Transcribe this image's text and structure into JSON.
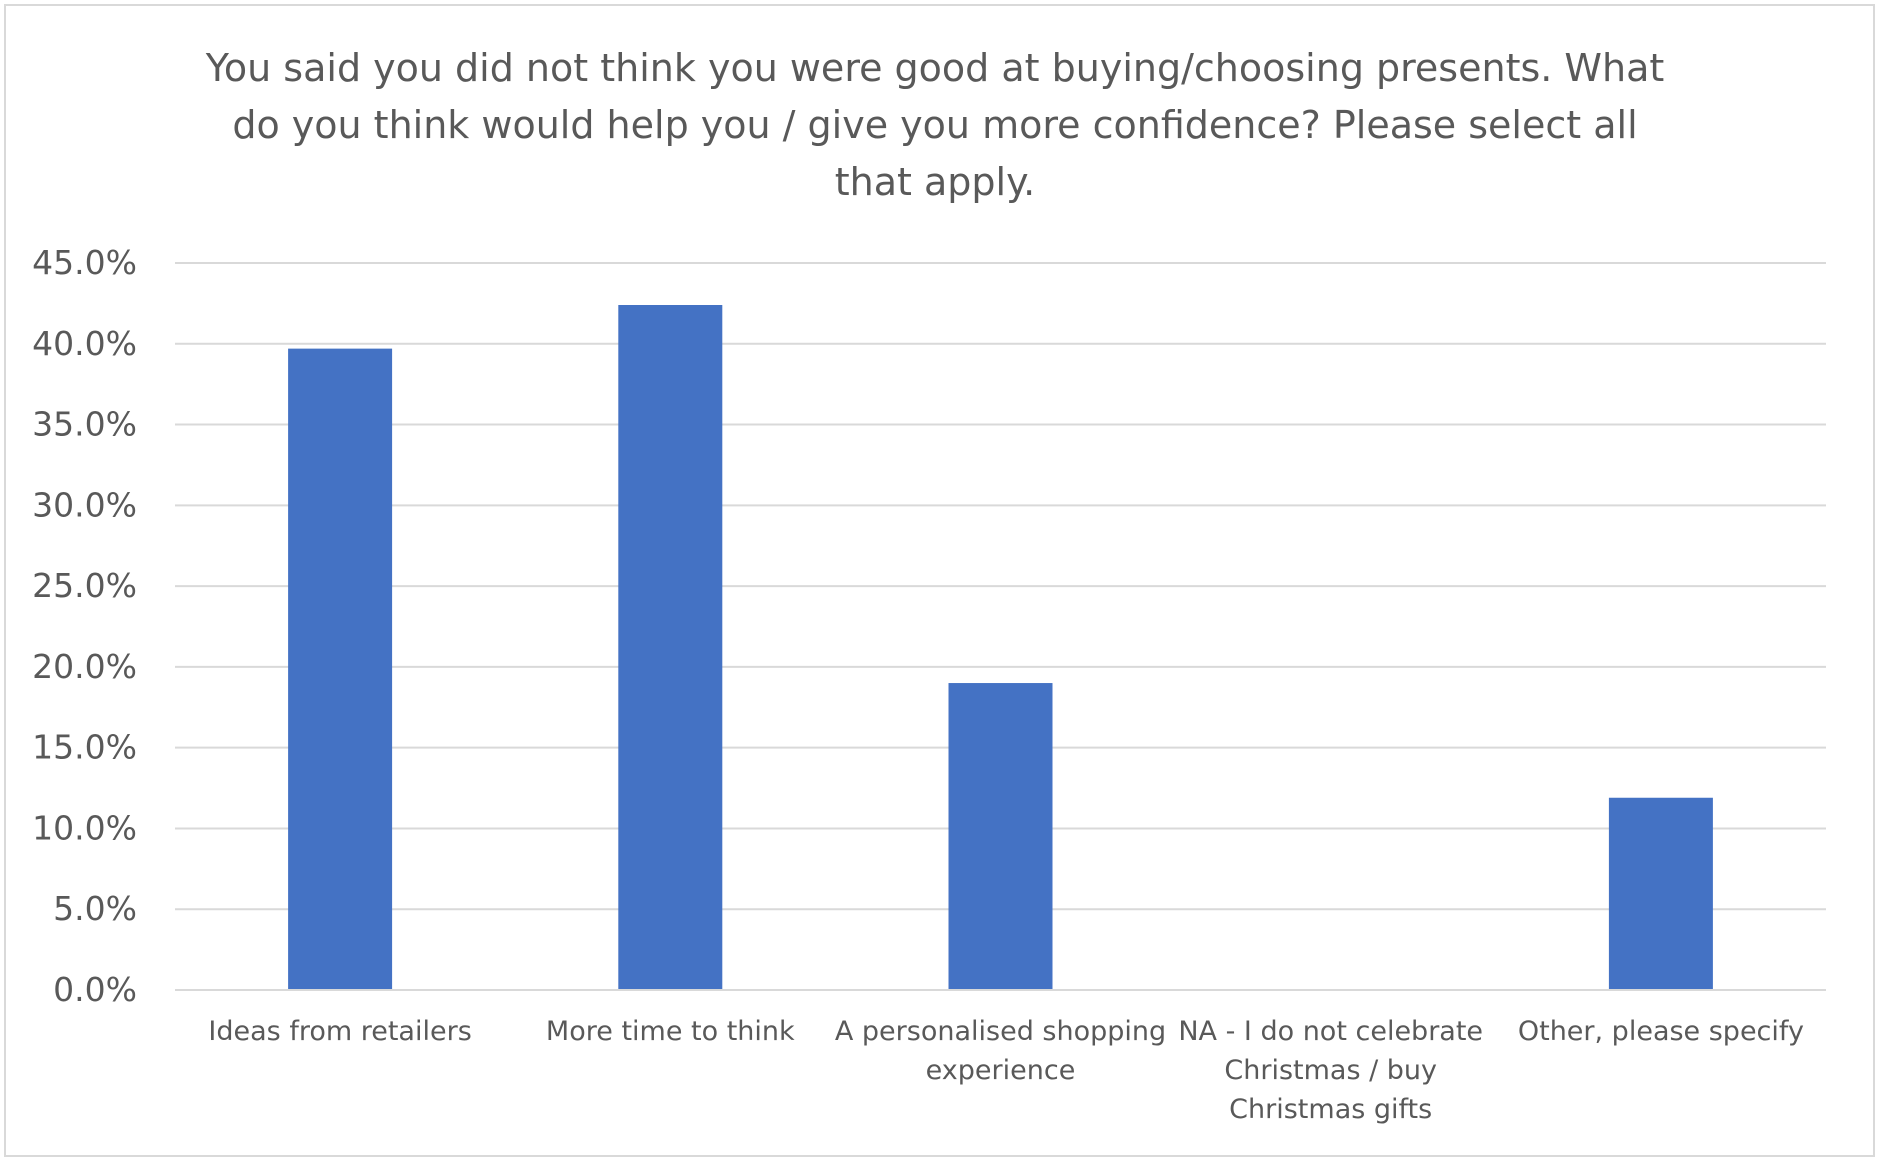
{
  "chart_data": {
    "type": "bar",
    "title": "You said you did not think you were good at buying/choosing presents. What do you think would help you / give you more confidence? Please select all that apply.",
    "categories": [
      [
        "Ideas from retailers"
      ],
      [
        "More time to think"
      ],
      [
        "A personalised shopping",
        "experience"
      ],
      [
        "NA - I do not celebrate",
        "Christmas / buy",
        "Christmas gifts"
      ],
      [
        "Other, please specify"
      ]
    ],
    "values": [
      39.7,
      42.4,
      19.0,
      0.0,
      11.9
    ],
    "ylim": [
      0,
      45
    ],
    "ytick_step": 5,
    "ytick_format": "percent_1dp",
    "grid": true,
    "legend": "none",
    "bar_color": "#4472C4",
    "grid_color": "#d9d9d9"
  }
}
